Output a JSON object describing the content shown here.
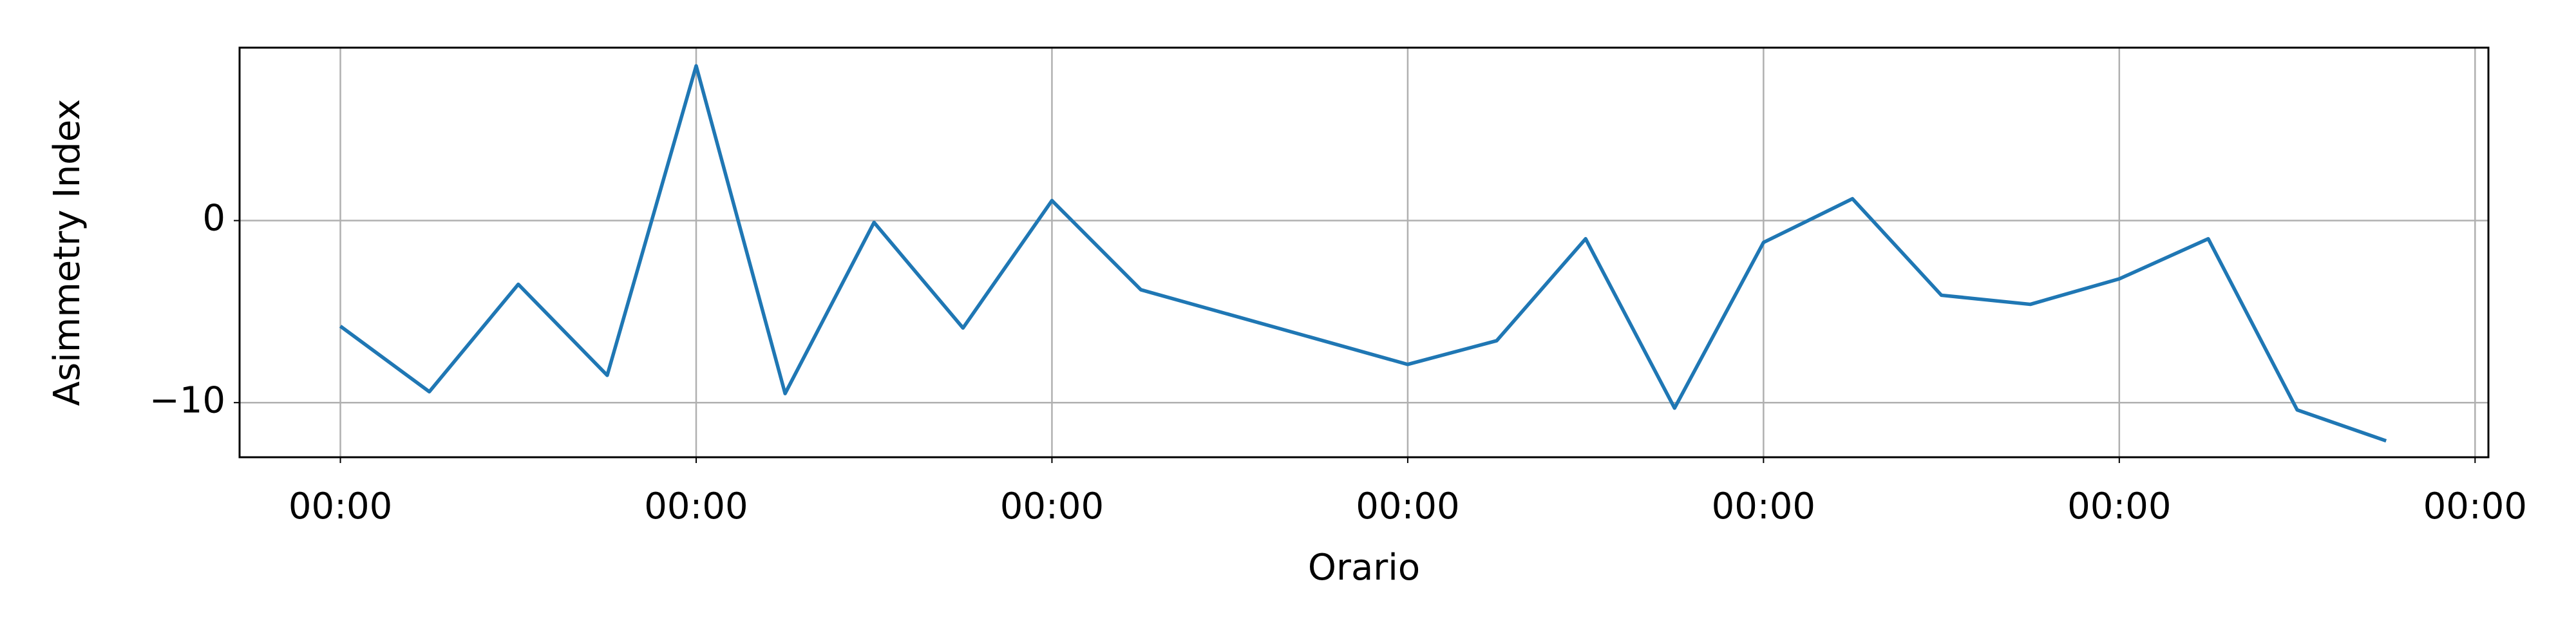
{
  "chart_data": {
    "type": "line",
    "xlabel": "Orario",
    "ylabel": "Asimmetry Index",
    "x": [
      0,
      6,
      12,
      18,
      24,
      30,
      36,
      42,
      48,
      54,
      72,
      78,
      84,
      90,
      96,
      102,
      108,
      114,
      120,
      126,
      132,
      138
    ],
    "values": [
      -5.8,
      -9.4,
      -3.5,
      -8.5,
      8.5,
      -9.5,
      -0.1,
      -5.9,
      1.1,
      -3.8,
      -7.9,
      -6.6,
      -1.0,
      -10.3,
      -1.2,
      1.2,
      -4.1,
      -4.6,
      -3.2,
      -1.0,
      -10.4,
      -12.1
    ],
    "color": "#1f77b4",
    "xlim": [
      -6.8,
      144.9
    ],
    "xticks": [
      {
        "value": 0,
        "label": "00:00"
      },
      {
        "value": 24,
        "label": "00:00"
      },
      {
        "value": 48,
        "label": "00:00"
      },
      {
        "value": 72,
        "label": "00:00"
      },
      {
        "value": 96,
        "label": "00:00"
      },
      {
        "value": 120,
        "label": "00:00"
      },
      {
        "value": 144,
        "label": "00:00"
      }
    ],
    "ylim": [
      -13.0,
      9.5
    ],
    "yticks": [
      {
        "value": -10,
        "label": "−10"
      },
      0
    ],
    "grid": true
  }
}
